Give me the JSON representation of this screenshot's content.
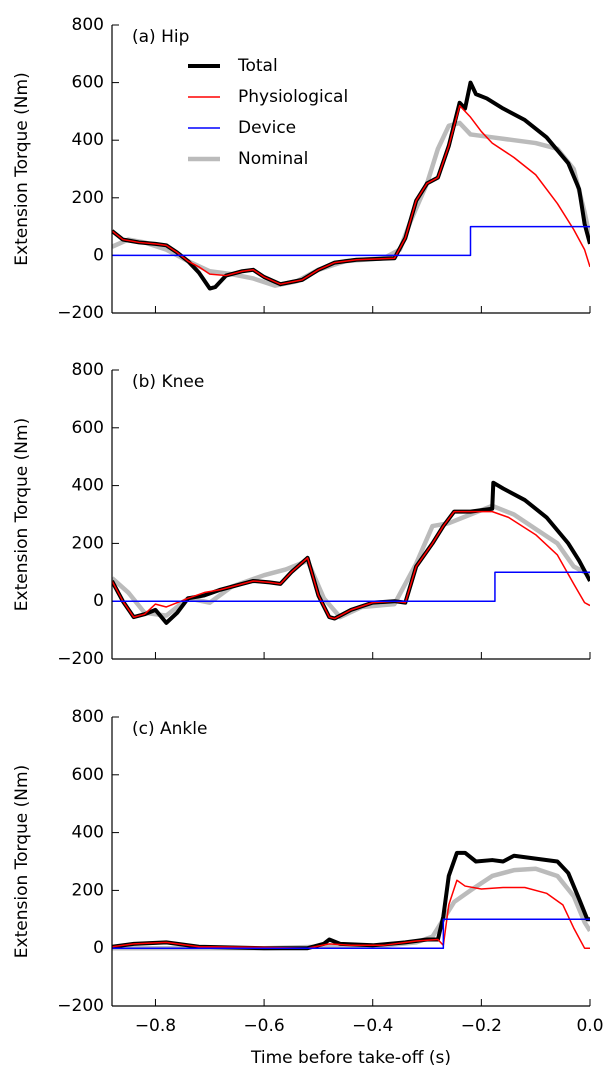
{
  "chart_data": [
    {
      "type": "line",
      "annotation": "(a) Hip",
      "ylabel": "Extension Torque (Nm)",
      "xlim": [
        -0.88,
        0.0
      ],
      "xticks": [
        -0.8,
        -0.6,
        -0.4,
        -0.2,
        0
      ],
      "xtick_labels": false,
      "ylim": [
        -200,
        800
      ],
      "yticks": [
        {
          "value": -200,
          "label": "−200"
        },
        0,
        200,
        400,
        600,
        800
      ],
      "legend": "upper left",
      "series": [
        {
          "name": "Total",
          "color": "#000000",
          "linewidth": 4,
          "x": [
            -0.88,
            -0.86,
            -0.83,
            -0.8,
            -0.78,
            -0.76,
            -0.74,
            -0.72,
            -0.7,
            -0.69,
            -0.67,
            -0.64,
            -0.62,
            -0.6,
            -0.57,
            -0.53,
            -0.5,
            -0.47,
            -0.43,
            -0.36,
            -0.34,
            -0.32,
            -0.3,
            -0.28,
            -0.26,
            -0.24,
            -0.23,
            -0.22,
            -0.21,
            -0.19,
            -0.16,
            -0.12,
            -0.08,
            -0.04,
            -0.02,
            -0.01,
            0
          ],
          "values": [
            85,
            55,
            45,
            40,
            35,
            10,
            -20,
            -60,
            -115,
            -110,
            -70,
            -55,
            -50,
            -75,
            -100,
            -85,
            -50,
            -25,
            -15,
            -10,
            60,
            190,
            250,
            270,
            380,
            530,
            510,
            600,
            560,
            545,
            510,
            470,
            410,
            320,
            230,
            110,
            40
          ]
        },
        {
          "name": "Physiological",
          "color": "#ff0000",
          "linewidth": 1.5,
          "x": [
            -0.88,
            -0.86,
            -0.83,
            -0.8,
            -0.78,
            -0.76,
            -0.74,
            -0.72,
            -0.7,
            -0.67,
            -0.64,
            -0.62,
            -0.6,
            -0.57,
            -0.53,
            -0.5,
            -0.47,
            -0.43,
            -0.36,
            -0.34,
            -0.32,
            -0.3,
            -0.28,
            -0.26,
            -0.24,
            -0.22,
            -0.2,
            -0.18,
            -0.14,
            -0.1,
            -0.06,
            -0.03,
            -0.01,
            0
          ],
          "values": [
            85,
            55,
            45,
            40,
            35,
            10,
            -20,
            -40,
            -65,
            -70,
            -55,
            -50,
            -75,
            -100,
            -85,
            -50,
            -25,
            -15,
            -10,
            60,
            190,
            250,
            270,
            380,
            520,
            480,
            430,
            390,
            340,
            280,
            180,
            90,
            20,
            -40
          ]
        },
        {
          "name": "Device",
          "color": "#0000ff",
          "linewidth": 1.5,
          "x": [
            -0.88,
            -0.22,
            -0.22,
            0
          ],
          "values": [
            0,
            0,
            100,
            100
          ]
        },
        {
          "name": "Nominal",
          "color": "#bbbbbb",
          "linewidth": 4.5,
          "x": [
            -0.88,
            -0.85,
            -0.82,
            -0.78,
            -0.74,
            -0.7,
            -0.66,
            -0.62,
            -0.58,
            -0.54,
            -0.5,
            -0.45,
            -0.38,
            -0.35,
            -0.33,
            -0.3,
            -0.28,
            -0.26,
            -0.24,
            -0.22,
            -0.18,
            -0.14,
            -0.1,
            -0.06,
            -0.03,
            -0.01,
            0
          ],
          "values": [
            30,
            55,
            45,
            20,
            -20,
            -55,
            -65,
            -80,
            -105,
            -90,
            -50,
            -20,
            -10,
            20,
            120,
            250,
            370,
            450,
            460,
            420,
            410,
            400,
            390,
            370,
            300,
            150,
            60
          ]
        }
      ]
    },
    {
      "type": "line",
      "annotation": "(b) Knee",
      "ylabel": "Extension Torque (Nm)",
      "xlim": [
        -0.88,
        0.0
      ],
      "xticks": [
        -0.8,
        -0.6,
        -0.4,
        -0.2,
        0
      ],
      "xtick_labels": false,
      "ylim": [
        -200,
        800
      ],
      "yticks": [
        {
          "value": -200,
          "label": "−200"
        },
        0,
        200,
        400,
        600,
        800
      ],
      "series": [
        {
          "color": "#000000",
          "linewidth": 4,
          "x": [
            -0.88,
            -0.86,
            -0.84,
            -0.82,
            -0.8,
            -0.78,
            -0.76,
            -0.74,
            -0.71,
            -0.68,
            -0.64,
            -0.62,
            -0.59,
            -0.57,
            -0.55,
            -0.52,
            -0.5,
            -0.48,
            -0.47,
            -0.44,
            -0.4,
            -0.36,
            -0.34,
            -0.32,
            -0.29,
            -0.27,
            -0.25,
            -0.22,
            -0.18,
            -0.178,
            -0.16,
            -0.12,
            -0.08,
            -0.04,
            -0.02,
            0
          ],
          "values": [
            70,
            0,
            -55,
            -45,
            -30,
            -75,
            -40,
            10,
            20,
            40,
            60,
            70,
            65,
            60,
            100,
            150,
            20,
            -55,
            -60,
            -30,
            -5,
            0,
            -5,
            120,
            200,
            260,
            310,
            310,
            320,
            410,
            390,
            350,
            290,
            200,
            140,
            70
          ]
        },
        {
          "color": "#ff0000",
          "linewidth": 1.5,
          "x": [
            -0.88,
            -0.86,
            -0.84,
            -0.82,
            -0.8,
            -0.78,
            -0.76,
            -0.74,
            -0.71,
            -0.68,
            -0.64,
            -0.62,
            -0.59,
            -0.57,
            -0.55,
            -0.52,
            -0.5,
            -0.48,
            -0.47,
            -0.44,
            -0.4,
            -0.36,
            -0.34,
            -0.32,
            -0.29,
            -0.27,
            -0.25,
            -0.22,
            -0.18,
            -0.15,
            -0.1,
            -0.06,
            -0.03,
            -0.01,
            0
          ],
          "values": [
            70,
            0,
            -55,
            -45,
            -10,
            -20,
            -5,
            10,
            30,
            40,
            60,
            70,
            65,
            60,
            100,
            150,
            20,
            -55,
            -60,
            -30,
            -5,
            0,
            -5,
            120,
            200,
            260,
            310,
            310,
            310,
            290,
            230,
            160,
            60,
            -5,
            -15
          ]
        },
        {
          "color": "#0000ff",
          "linewidth": 1.5,
          "x": [
            -0.88,
            -0.175,
            -0.175,
            0
          ],
          "values": [
            0,
            0,
            100,
            100
          ]
        },
        {
          "color": "#bbbbbb",
          "linewidth": 4.5,
          "x": [
            -0.88,
            -0.85,
            -0.82,
            -0.78,
            -0.74,
            -0.7,
            -0.66,
            -0.6,
            -0.56,
            -0.52,
            -0.49,
            -0.46,
            -0.42,
            -0.36,
            -0.32,
            -0.29,
            -0.26,
            -0.22,
            -0.18,
            -0.14,
            -0.1,
            -0.06,
            -0.03,
            0
          ],
          "values": [
            80,
            30,
            -40,
            -50,
            10,
            -5,
            50,
            90,
            110,
            140,
            10,
            -55,
            -20,
            -10,
            130,
            260,
            270,
            300,
            330,
            300,
            250,
            200,
            120,
            90
          ]
        }
      ]
    },
    {
      "type": "line",
      "annotation": "(c) Ankle",
      "ylabel": "Extension Torque (Nm)",
      "xlabel": "Time before take-off (s)",
      "xlim": [
        -0.88,
        0.0
      ],
      "xticks": [
        {
          "value": -0.8,
          "label": "−0.8"
        },
        {
          "value": -0.6,
          "label": "−0.6"
        },
        {
          "value": -0.4,
          "label": "−0.4"
        },
        {
          "value": -0.2,
          "label": "−0.2"
        },
        {
          "value": 0,
          "label": "0.0"
        }
      ],
      "ylim": [
        -200,
        800
      ],
      "yticks": [
        {
          "value": -200,
          "label": "−200"
        },
        0,
        200,
        400,
        600,
        800
      ],
      "series": [
        {
          "color": "#000000",
          "linewidth": 4,
          "x": [
            -0.88,
            -0.84,
            -0.78,
            -0.72,
            -0.6,
            -0.52,
            -0.49,
            -0.48,
            -0.46,
            -0.4,
            -0.34,
            -0.3,
            -0.28,
            -0.27,
            -0.26,
            -0.245,
            -0.23,
            -0.21,
            -0.18,
            -0.16,
            -0.14,
            -0.1,
            -0.06,
            -0.04,
            -0.02,
            -0.005,
            0
          ],
          "values": [
            5,
            15,
            20,
            5,
            0,
            0,
            15,
            30,
            15,
            10,
            20,
            30,
            30,
            110,
            250,
            330,
            330,
            300,
            305,
            300,
            320,
            310,
            300,
            260,
            170,
            100,
            100
          ]
        },
        {
          "color": "#ff0000",
          "linewidth": 1.5,
          "x": [
            -0.88,
            -0.84,
            -0.78,
            -0.72,
            -0.6,
            -0.52,
            -0.48,
            -0.44,
            -0.38,
            -0.32,
            -0.28,
            -0.27,
            -0.26,
            -0.245,
            -0.23,
            -0.2,
            -0.16,
            -0.12,
            -0.08,
            -0.05,
            -0.03,
            -0.01,
            0
          ],
          "values": [
            5,
            15,
            20,
            5,
            3,
            0,
            15,
            10,
            10,
            25,
            30,
            10,
            150,
            235,
            215,
            205,
            210,
            210,
            190,
            150,
            70,
            0,
            0
          ]
        },
        {
          "color": "#0000ff",
          "linewidth": 1.5,
          "x": [
            -0.88,
            -0.27,
            -0.27,
            0
          ],
          "values": [
            0,
            0,
            100,
            100
          ]
        },
        {
          "color": "#bbbbbb",
          "linewidth": 4.5,
          "x": [
            -0.88,
            -0.6,
            -0.5,
            -0.4,
            -0.32,
            -0.29,
            -0.27,
            -0.25,
            -0.22,
            -0.18,
            -0.14,
            -0.1,
            -0.06,
            -0.03,
            -0.01,
            0
          ],
          "values": [
            0,
            0,
            5,
            5,
            20,
            40,
            100,
            160,
            200,
            250,
            270,
            275,
            250,
            180,
            90,
            60
          ]
        }
      ]
    }
  ]
}
